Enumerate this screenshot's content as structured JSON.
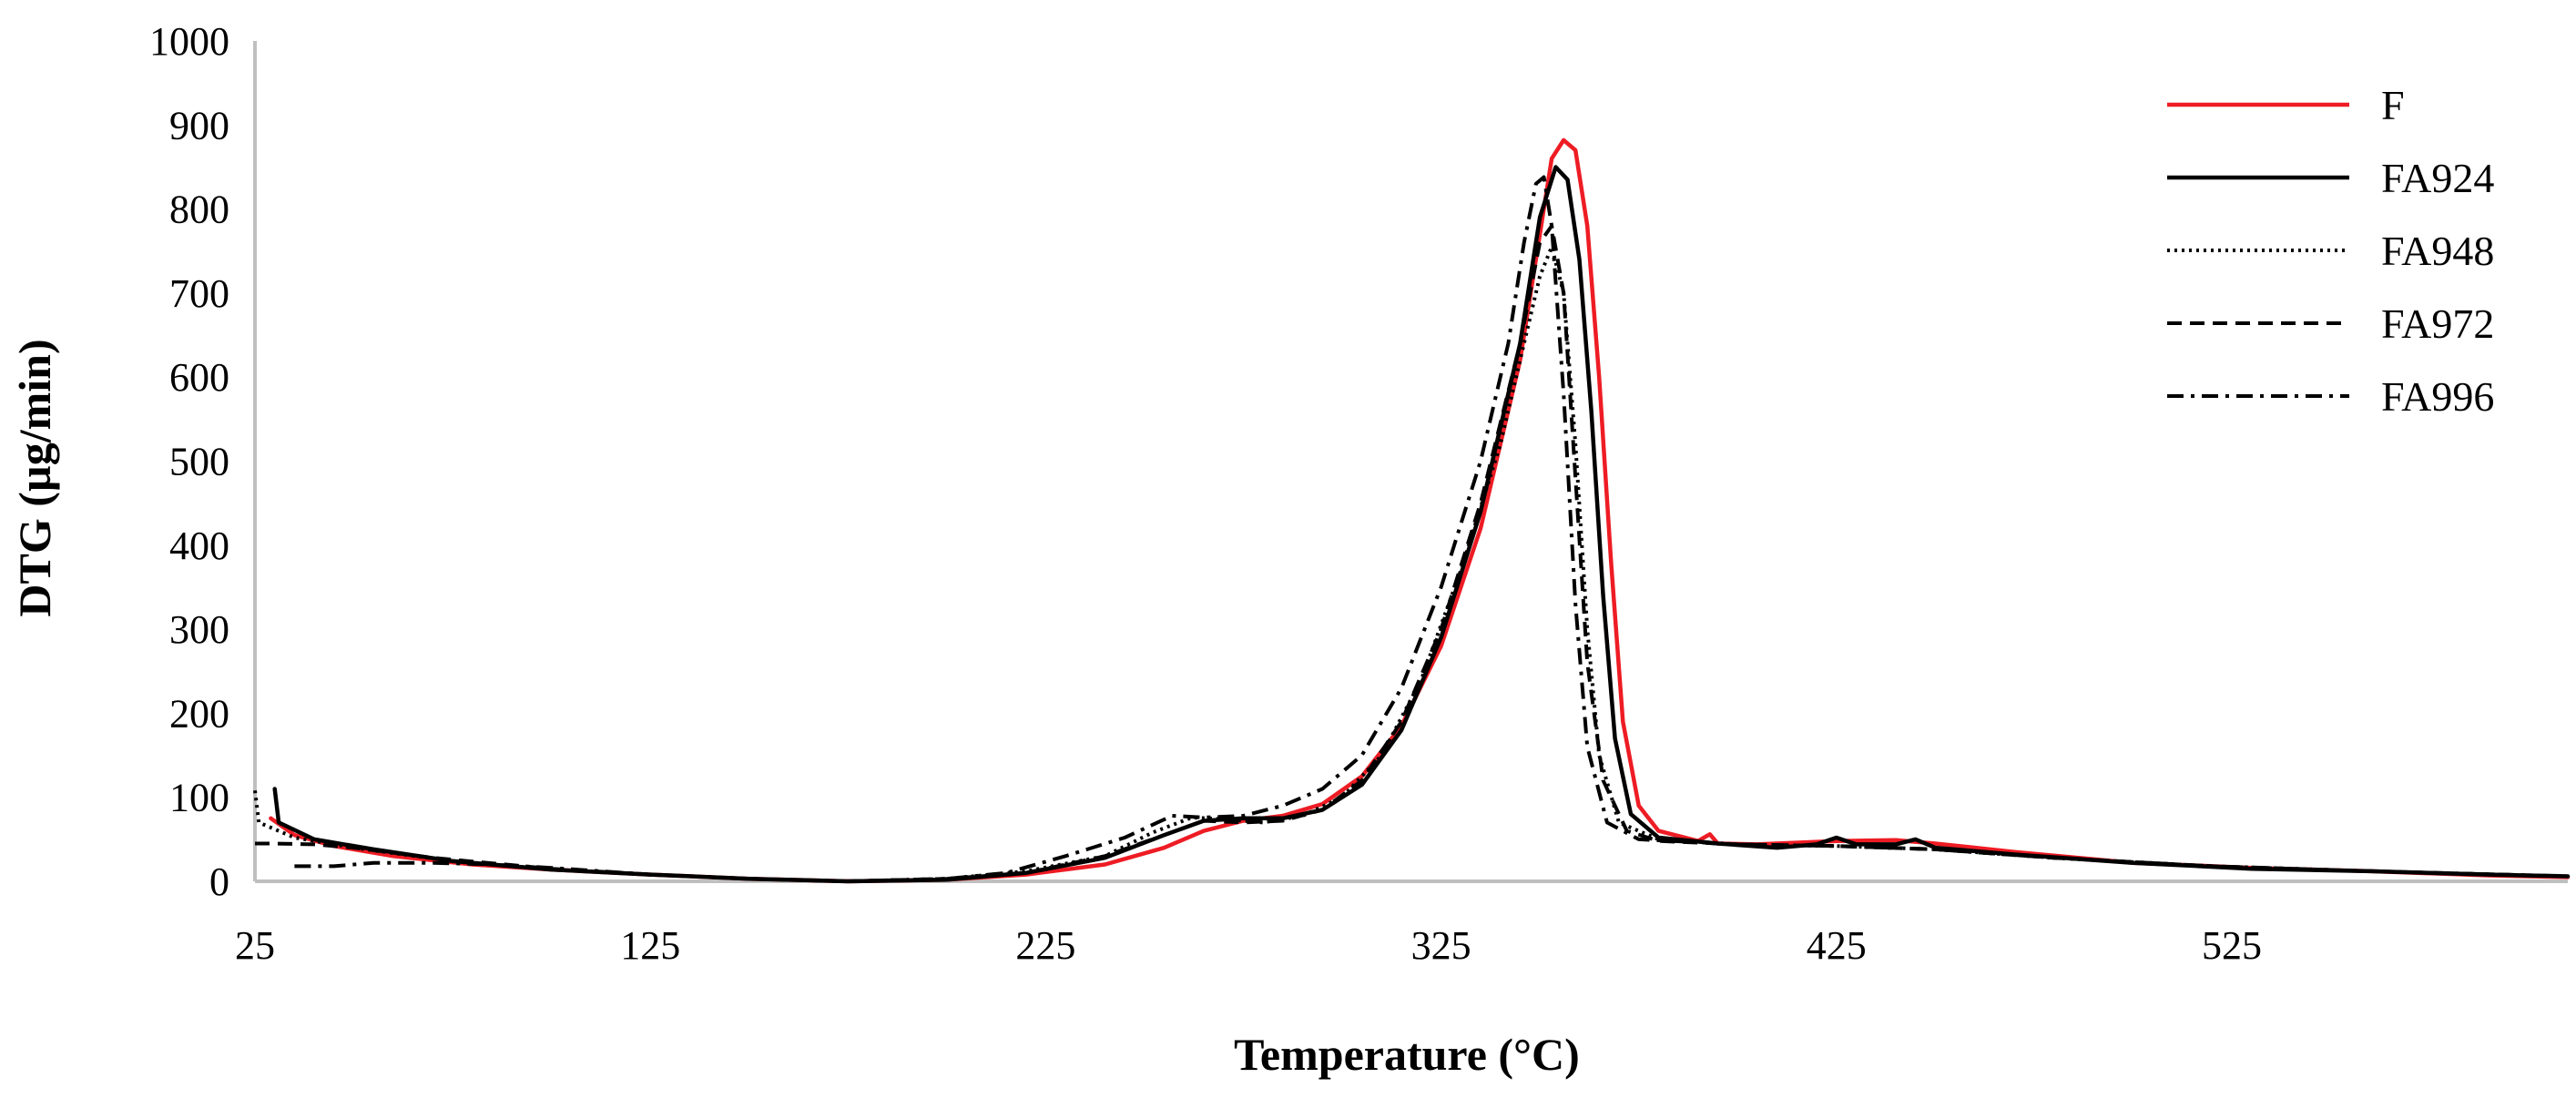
{
  "chart_data": {
    "type": "line",
    "title": "",
    "xlabel": "Temperature (°C)",
    "ylabel": "DTG (µg/min)",
    "xlim": [
      25,
      610
    ],
    "ylim": [
      0,
      1000
    ],
    "x_ticks": [
      25,
      125,
      225,
      325,
      425,
      525
    ],
    "y_ticks": [
      0,
      100,
      200,
      300,
      400,
      500,
      600,
      700,
      800,
      900,
      1000
    ],
    "legend_position": "top-right",
    "series": [
      {
        "name": "F",
        "color": "#ee1c24",
        "dash": "solid",
        "points": [
          [
            29,
            75
          ],
          [
            35,
            55
          ],
          [
            45,
            42
          ],
          [
            60,
            30
          ],
          [
            80,
            20
          ],
          [
            100,
            14
          ],
          [
            125,
            8
          ],
          [
            150,
            3
          ],
          [
            175,
            0
          ],
          [
            200,
            2
          ],
          [
            220,
            8
          ],
          [
            240,
            20
          ],
          [
            255,
            40
          ],
          [
            265,
            60
          ],
          [
            275,
            72
          ],
          [
            285,
            78
          ],
          [
            295,
            92
          ],
          [
            305,
            125
          ],
          [
            315,
            185
          ],
          [
            325,
            280
          ],
          [
            335,
            420
          ],
          [
            345,
            620
          ],
          [
            350,
            770
          ],
          [
            353,
            860
          ],
          [
            356,
            882
          ],
          [
            359,
            870
          ],
          [
            362,
            780
          ],
          [
            365,
            600
          ],
          [
            368,
            380
          ],
          [
            371,
            190
          ],
          [
            375,
            90
          ],
          [
            380,
            60
          ],
          [
            390,
            48
          ],
          [
            393,
            56
          ],
          [
            395,
            45
          ],
          [
            405,
            44
          ],
          [
            425,
            48
          ],
          [
            440,
            49
          ],
          [
            450,
            45
          ],
          [
            470,
            35
          ],
          [
            500,
            22
          ],
          [
            530,
            16
          ],
          [
            560,
            12
          ],
          [
            590,
            7
          ],
          [
            610,
            5
          ]
        ]
      },
      {
        "name": "FA924",
        "color": "#000000",
        "dash": "solid",
        "points": [
          [
            30,
            110
          ],
          [
            31,
            70
          ],
          [
            40,
            50
          ],
          [
            55,
            38
          ],
          [
            75,
            24
          ],
          [
            100,
            14
          ],
          [
            125,
            8
          ],
          [
            150,
            3
          ],
          [
            175,
            0
          ],
          [
            200,
            2
          ],
          [
            220,
            10
          ],
          [
            240,
            28
          ],
          [
            255,
            55
          ],
          [
            265,
            72
          ],
          [
            275,
            75
          ],
          [
            285,
            75
          ],
          [
            295,
            85
          ],
          [
            305,
            115
          ],
          [
            315,
            180
          ],
          [
            325,
            290
          ],
          [
            335,
            440
          ],
          [
            345,
            640
          ],
          [
            350,
            790
          ],
          [
            354,
            850
          ],
          [
            357,
            835
          ],
          [
            360,
            740
          ],
          [
            363,
            560
          ],
          [
            366,
            340
          ],
          [
            369,
            170
          ],
          [
            373,
            80
          ],
          [
            380,
            52
          ],
          [
            395,
            45
          ],
          [
            410,
            40
          ],
          [
            420,
            44
          ],
          [
            425,
            52
          ],
          [
            430,
            44
          ],
          [
            440,
            44
          ],
          [
            445,
            50
          ],
          [
            450,
            40
          ],
          [
            470,
            32
          ],
          [
            500,
            22
          ],
          [
            530,
            15
          ],
          [
            560,
            12
          ],
          [
            590,
            8
          ],
          [
            610,
            6
          ]
        ]
      },
      {
        "name": "FA948",
        "color": "#000000",
        "dash": "dotted",
        "points": [
          [
            25,
            108
          ],
          [
            26,
            70
          ],
          [
            35,
            52
          ],
          [
            50,
            40
          ],
          [
            75,
            24
          ],
          [
            100,
            14
          ],
          [
            125,
            8
          ],
          [
            150,
            3
          ],
          [
            175,
            0
          ],
          [
            200,
            3
          ],
          [
            220,
            12
          ],
          [
            240,
            30
          ],
          [
            252,
            58
          ],
          [
            262,
            76
          ],
          [
            270,
            74
          ],
          [
            280,
            70
          ],
          [
            290,
            78
          ],
          [
            300,
            100
          ],
          [
            310,
            150
          ],
          [
            320,
            240
          ],
          [
            330,
            370
          ],
          [
            340,
            520
          ],
          [
            346,
            640
          ],
          [
            350,
            720
          ],
          [
            353,
            755
          ],
          [
            356,
            700
          ],
          [
            359,
            520
          ],
          [
            362,
            300
          ],
          [
            365,
            150
          ],
          [
            370,
            70
          ],
          [
            380,
            50
          ],
          [
            400,
            44
          ],
          [
            425,
            42
          ],
          [
            450,
            38
          ],
          [
            480,
            28
          ],
          [
            520,
            18
          ],
          [
            560,
            12
          ],
          [
            610,
            6
          ]
        ]
      },
      {
        "name": "FA972",
        "color": "#000000",
        "dash": "dashed",
        "points": [
          [
            25,
            45
          ],
          [
            30,
            45
          ],
          [
            40,
            44
          ],
          [
            50,
            40
          ],
          [
            70,
            28
          ],
          [
            100,
            15
          ],
          [
            125,
            8
          ],
          [
            150,
            3
          ],
          [
            175,
            0
          ],
          [
            200,
            3
          ],
          [
            220,
            10
          ],
          [
            240,
            30
          ],
          [
            255,
            55
          ],
          [
            265,
            72
          ],
          [
            275,
            70
          ],
          [
            285,
            72
          ],
          [
            295,
            85
          ],
          [
            305,
            120
          ],
          [
            315,
            190
          ],
          [
            325,
            300
          ],
          [
            335,
            450
          ],
          [
            345,
            640
          ],
          [
            350,
            760
          ],
          [
            353,
            780
          ],
          [
            356,
            700
          ],
          [
            359,
            480
          ],
          [
            362,
            260
          ],
          [
            366,
            120
          ],
          [
            372,
            60
          ],
          [
            380,
            48
          ],
          [
            400,
            44
          ],
          [
            425,
            42
          ],
          [
            450,
            38
          ],
          [
            480,
            28
          ],
          [
            520,
            18
          ],
          [
            560,
            12
          ],
          [
            610,
            6
          ]
        ]
      },
      {
        "name": "FA996",
        "color": "#000000",
        "dash": "dashdot",
        "points": [
          [
            35,
            18
          ],
          [
            45,
            18
          ],
          [
            55,
            22
          ],
          [
            70,
            22
          ],
          [
            85,
            20
          ],
          [
            100,
            16
          ],
          [
            125,
            8
          ],
          [
            150,
            3
          ],
          [
            175,
            0
          ],
          [
            200,
            3
          ],
          [
            215,
            10
          ],
          [
            230,
            30
          ],
          [
            245,
            52
          ],
          [
            257,
            78
          ],
          [
            265,
            76
          ],
          [
            275,
            78
          ],
          [
            285,
            90
          ],
          [
            295,
            110
          ],
          [
            305,
            150
          ],
          [
            315,
            230
          ],
          [
            325,
            350
          ],
          [
            335,
            500
          ],
          [
            342,
            640
          ],
          [
            346,
            760
          ],
          [
            349,
            830
          ],
          [
            351,
            838
          ],
          [
            353,
            780
          ],
          [
            356,
            580
          ],
          [
            359,
            330
          ],
          [
            362,
            160
          ],
          [
            367,
            70
          ],
          [
            375,
            50
          ],
          [
            400,
            44
          ],
          [
            425,
            42
          ],
          [
            450,
            38
          ],
          [
            480,
            28
          ],
          [
            520,
            18
          ],
          [
            560,
            12
          ],
          [
            610,
            6
          ]
        ]
      }
    ]
  }
}
